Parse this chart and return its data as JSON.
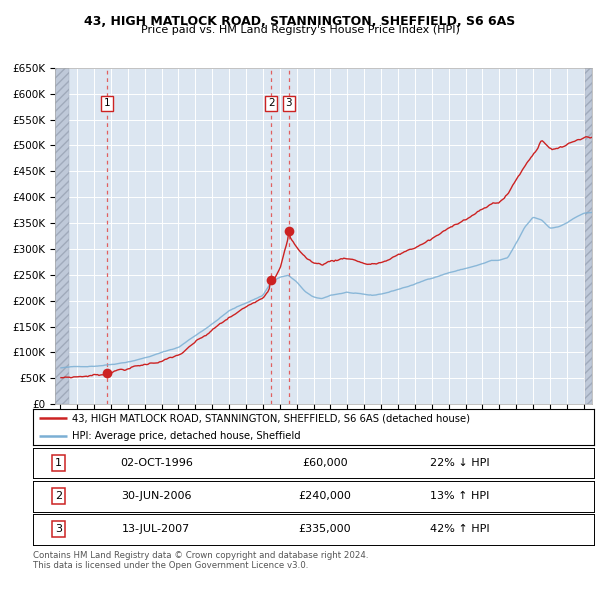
{
  "title": "43, HIGH MATLOCK ROAD, STANNINGTON, SHEFFIELD, S6 6AS",
  "subtitle": "Price paid vs. HM Land Registry's House Price Index (HPI)",
  "legend_line1": "43, HIGH MATLOCK ROAD, STANNINGTON, SHEFFIELD, S6 6AS (detached house)",
  "legend_line2": "HPI: Average price, detached house, Sheffield",
  "table_rows": [
    {
      "num": "1",
      "date": "02-OCT-1996",
      "price": "£60,000",
      "pct": "22% ↓ HPI"
    },
    {
      "num": "2",
      "date": "30-JUN-2006",
      "price": "£240,000",
      "pct": "13% ↑ HPI"
    },
    {
      "num": "3",
      "date": "13-JUL-2007",
      "price": "£335,000",
      "pct": "42% ↑ HPI"
    }
  ],
  "footnote1": "Contains HM Land Registry data © Crown copyright and database right 2024.",
  "footnote2": "This data is licensed under the Open Government Licence v3.0.",
  "hpi_line_color": "#7bafd4",
  "price_line_color": "#cc2222",
  "sale_marker_color": "#cc2222",
  "bg_color": "#dce6f1",
  "hatch_color": "#bfc9d9",
  "grid_color": "#ffffff",
  "vline_color": "#e06060",
  "ylim": [
    0,
    650000
  ],
  "xlim_start": 1993.7,
  "xlim_end": 2025.5,
  "sale_dates_decimal": [
    1996.75,
    2006.5,
    2007.54
  ],
  "sale_prices": [
    60000,
    240000,
    335000
  ],
  "sale_labels": [
    "1",
    "2",
    "3"
  ]
}
